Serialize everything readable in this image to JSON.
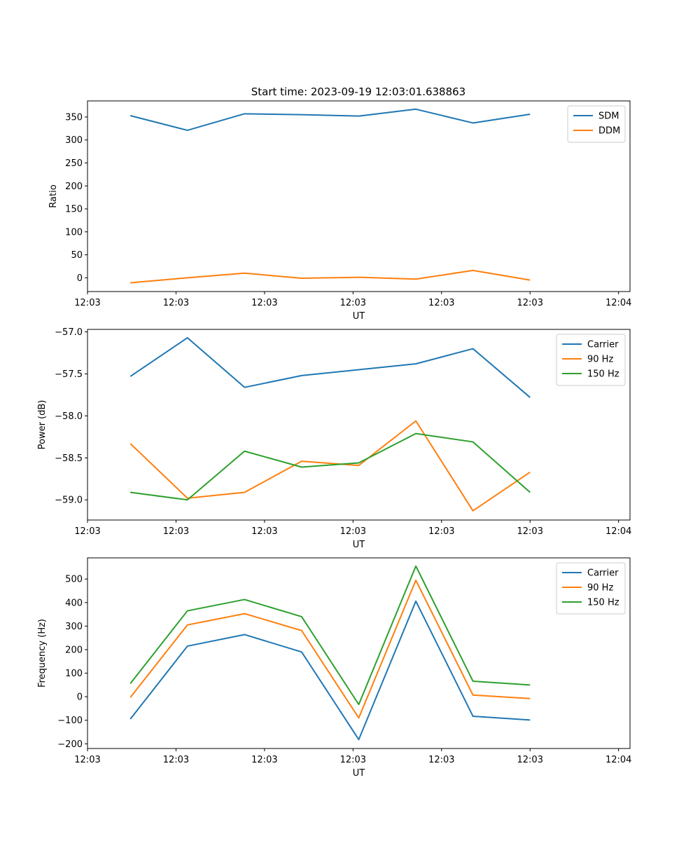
{
  "chart_data": [
    {
      "type": "line",
      "title": "Start time: 2023-09-19 12:03:01.638863",
      "xlabel": "UT",
      "ylabel": "Ratio",
      "xlim": [
        0,
        19
      ],
      "ylim": [
        -30,
        385
      ],
      "x": [
        1.5,
        3.5,
        5.5,
        7.5,
        9.5,
        11.5,
        13.5,
        15.5
      ],
      "xticks": [
        0,
        3.1,
        6.2,
        9.3,
        12.4,
        15.5,
        18.6
      ],
      "xtick_labels": [
        "12:03",
        "12:03",
        "12:03",
        "12:03",
        "12:03",
        "12:03",
        "12:04"
      ],
      "yticks": [
        0,
        50,
        100,
        150,
        200,
        250,
        300,
        350
      ],
      "ytick_labels": [
        "0",
        "50",
        "100",
        "150",
        "200",
        "250",
        "300",
        "350"
      ],
      "legend_position": "top-right",
      "series": [
        {
          "name": "SDM",
          "color": "#1f77b4",
          "values": [
            353,
            321,
            357,
            355,
            352,
            367,
            337,
            356
          ]
        },
        {
          "name": "DDM",
          "color": "#ff7f0e",
          "values": [
            -11,
            0,
            10,
            -1,
            1,
            -3,
            16,
            -5
          ]
        }
      ]
    },
    {
      "type": "line",
      "title": "",
      "xlabel": "UT",
      "ylabel": "Power (dB)",
      "xlim": [
        0,
        19
      ],
      "ylim": [
        -59.24,
        -56.97
      ],
      "x": [
        1.5,
        3.5,
        5.5,
        7.5,
        9.5,
        11.5,
        13.5,
        15.5
      ],
      "xticks": [
        0,
        3.1,
        6.2,
        9.3,
        12.4,
        15.5,
        18.6
      ],
      "xtick_labels": [
        "12:03",
        "12:03",
        "12:03",
        "12:03",
        "12:03",
        "12:03",
        "12:04"
      ],
      "yticks": [
        -59.0,
        -58.5,
        -58.0,
        -57.5,
        -57.0
      ],
      "ytick_labels": [
        "−59.0",
        "−58.5",
        "−58.0",
        "−57.5",
        "−57.0"
      ],
      "legend_position": "top-right",
      "series": [
        {
          "name": "Carrier",
          "color": "#1f77b4",
          "values": [
            -57.53,
            -57.07,
            -57.66,
            -57.52,
            -57.45,
            -57.38,
            -57.2,
            -57.78
          ]
        },
        {
          "name": "90 Hz",
          "color": "#ff7f0e",
          "values": [
            -58.33,
            -58.98,
            -58.91,
            -58.54,
            -58.59,
            -58.06,
            -59.13,
            -58.67
          ]
        },
        {
          "name": "150 Hz",
          "color": "#2ca02c",
          "values": [
            -58.91,
            -59.0,
            -58.42,
            -58.61,
            -58.56,
            -58.21,
            -58.31,
            -58.91
          ]
        }
      ]
    },
    {
      "type": "line",
      "title": "",
      "xlabel": "UT",
      "ylabel": "Frequency (Hz)",
      "xlim": [
        0,
        19
      ],
      "ylim": [
        -220,
        590
      ],
      "x": [
        1.5,
        3.5,
        5.5,
        7.5,
        9.5,
        11.5,
        13.5,
        15.5
      ],
      "xticks": [
        0,
        3.1,
        6.2,
        9.3,
        12.4,
        15.5,
        18.6
      ],
      "xtick_labels": [
        "12:03",
        "12:03",
        "12:03",
        "12:03",
        "12:03",
        "12:03",
        "12:04"
      ],
      "yticks": [
        -200,
        -100,
        0,
        100,
        200,
        300,
        400,
        500
      ],
      "ytick_labels": [
        "−200",
        "−100",
        "0",
        "100",
        "200",
        "300",
        "400",
        "500"
      ],
      "legend_position": "top-right",
      "series": [
        {
          "name": "Carrier",
          "color": "#1f77b4",
          "values": [
            -95,
            215,
            264,
            190,
            -182,
            406,
            -83,
            -99
          ]
        },
        {
          "name": "90 Hz",
          "color": "#ff7f0e",
          "values": [
            -3,
            305,
            353,
            281,
            -90,
            495,
            7,
            -8
          ]
        },
        {
          "name": "150 Hz",
          "color": "#2ca02c",
          "values": [
            56,
            365,
            413,
            340,
            -33,
            555,
            66,
            50
          ]
        }
      ]
    }
  ]
}
